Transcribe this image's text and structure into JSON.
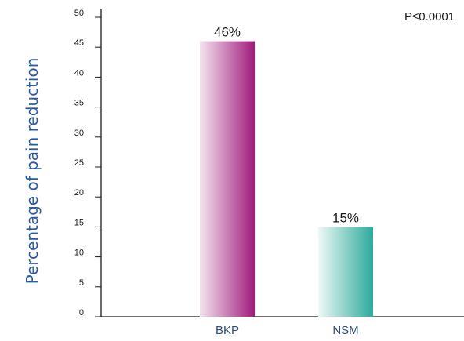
{
  "chart_data": {
    "type": "bar",
    "categories": [
      "BKP",
      "NSM"
    ],
    "values": [
      46,
      15
    ],
    "data_labels": [
      "46%",
      "15%"
    ],
    "title": "",
    "xlabel": "",
    "ylabel": "Percentage of pain reduction",
    "ylim": [
      0,
      50
    ],
    "yticks": [
      0,
      5,
      10,
      15,
      20,
      25,
      30,
      35,
      40,
      45,
      50
    ],
    "annotation": "P≤0.0001",
    "grid": false,
    "legend": "none",
    "colors": {
      "BKP": [
        "#f3e4ef",
        "#a01a7d"
      ],
      "NSM": [
        "#eef8f6",
        "#2cab9b"
      ],
      "axis": "#1a1a1a",
      "ylabel": "#2a5aa6",
      "xtick": "#2d4a7a"
    }
  }
}
